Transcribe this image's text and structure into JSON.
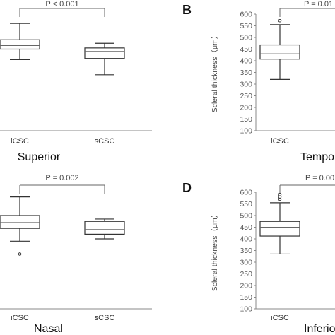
{
  "chart_data": [
    {
      "type": "box",
      "panel_letter": "",
      "title": "Superior",
      "ylabel": "",
      "categories": [
        "iCSC",
        "sCSC"
      ],
      "annotation": "P < 0.001",
      "boxes": [
        {
          "category": "iCSC",
          "whisker_low": 405,
          "q1": 450,
          "median": 465,
          "q3": 490,
          "whisker_high": 560,
          "outliers": []
        },
        {
          "category": "sCSC",
          "whisker_low": 340,
          "q1": 410,
          "median": 440,
          "q3": 455,
          "whisker_high": 475,
          "outliers": []
        }
      ]
    },
    {
      "type": "box",
      "panel_letter": "B",
      "title": "Tempor",
      "ylabel": "Scleral thickness（μm）",
      "ylim": [
        100,
        600
      ],
      "yticks": [
        100,
        150,
        200,
        250,
        300,
        350,
        400,
        450,
        500,
        550,
        600
      ],
      "categories": [
        "iCSC"
      ],
      "annotation": "P = 0.01",
      "boxes": [
        {
          "category": "iCSC",
          "whisker_low": 320,
          "q1": 407,
          "median": 430,
          "q3": 468,
          "whisker_high": 555,
          "outliers": [
            572
          ]
        }
      ]
    },
    {
      "type": "box",
      "panel_letter": "",
      "title": "Nasal",
      "ylabel": "",
      "categories": [
        "iCSC",
        "sCSC"
      ],
      "annotation": "P = 0.002",
      "boxes": [
        {
          "category": "iCSC",
          "whisker_low": 390,
          "q1": 445,
          "median": 470,
          "q3": 500,
          "whisker_high": 580,
          "outliers": [
            335
          ]
        },
        {
          "category": "sCSC",
          "whisker_low": 400,
          "q1": 420,
          "median": 440,
          "q3": 475,
          "whisker_high": 485,
          "outliers": []
        }
      ]
    },
    {
      "type": "box",
      "panel_letter": "D",
      "title": "Inferio",
      "ylabel": "Scleral thickness（μm）",
      "ylim": [
        100,
        600
      ],
      "yticks": [
        100,
        150,
        200,
        250,
        300,
        350,
        400,
        450,
        500,
        550,
        600
      ],
      "categories": [
        "iCSC"
      ],
      "annotation": "P = 0.00",
      "boxes": [
        {
          "category": "iCSC",
          "whisker_low": 335,
          "q1": 412,
          "median": 450,
          "q3": 475,
          "whisker_high": 555,
          "outliers": [
            570,
            580,
            590
          ]
        }
      ]
    }
  ]
}
